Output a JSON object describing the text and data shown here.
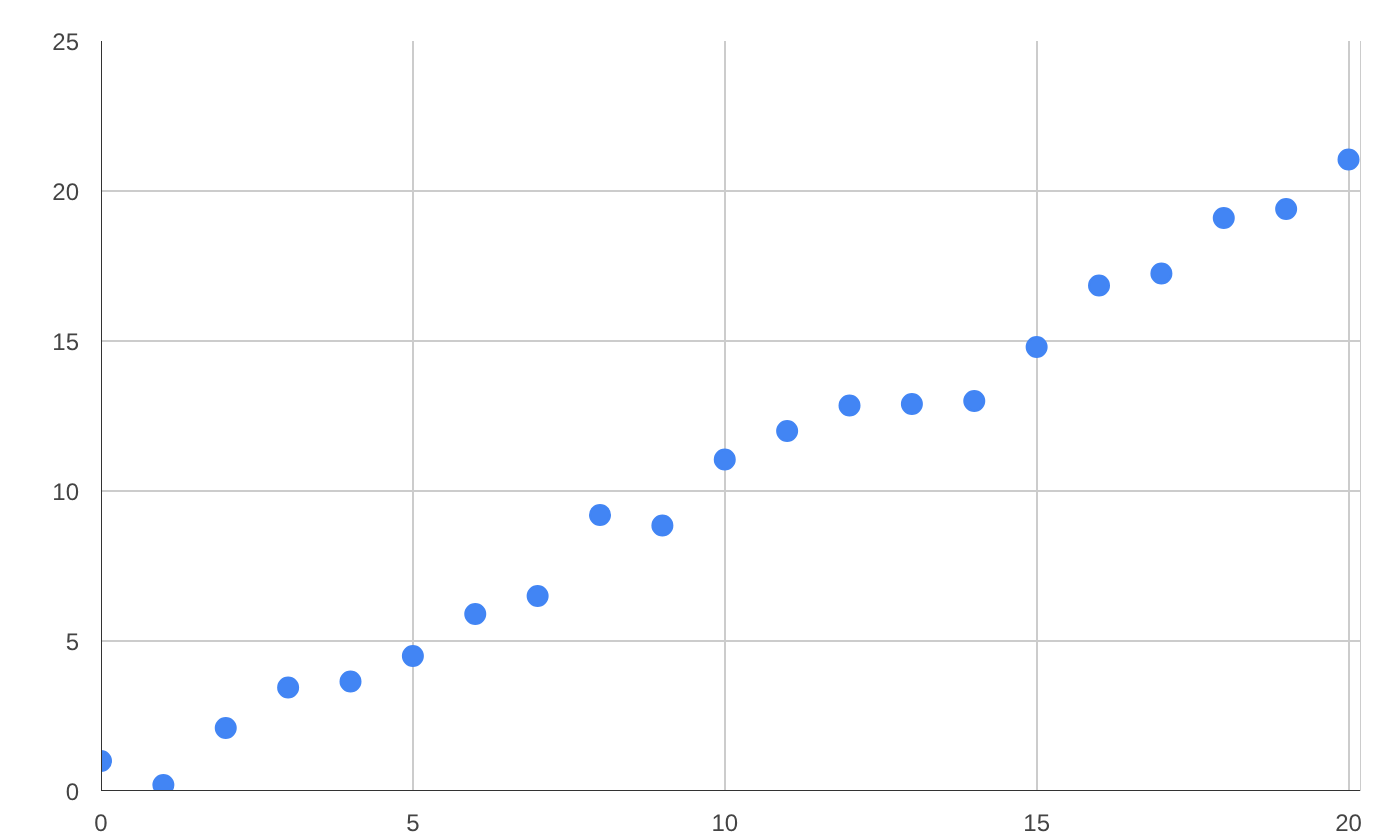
{
  "chart_data": {
    "type": "scatter",
    "x": [
      0,
      1,
      2,
      3,
      4,
      5,
      6,
      7,
      8,
      9,
      10,
      11,
      12,
      13,
      14,
      15,
      16,
      17,
      18,
      19,
      20
    ],
    "values": [
      1.0,
      0.2,
      2.1,
      3.45,
      3.65,
      4.5,
      5.9,
      6.5,
      9.2,
      8.85,
      11.05,
      12.0,
      12.85,
      12.9,
      13.0,
      14.8,
      16.85,
      17.25,
      19.1,
      19.4,
      21.05
    ],
    "color": "#4285f4",
    "marker": "circle",
    "grid": true,
    "xlim": [
      0,
      20.2
    ],
    "xticks": [
      0,
      5,
      10,
      15,
      20
    ],
    "ylim": [
      0,
      25
    ],
    "yticks": [
      0,
      5,
      10,
      15,
      20,
      25
    ]
  }
}
